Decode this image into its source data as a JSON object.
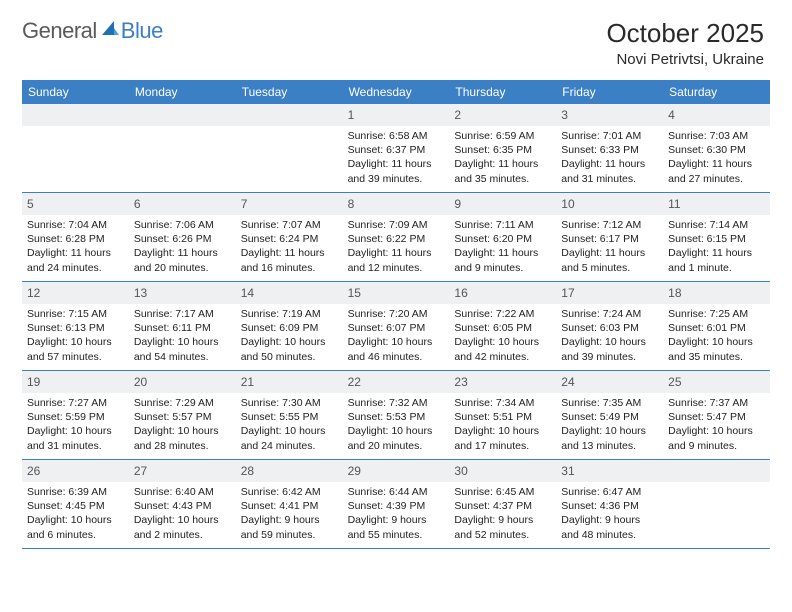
{
  "logo": {
    "text_general": "General",
    "text_blue": "Blue",
    "accent_color": "#1f6fb2"
  },
  "title": "October 2025",
  "location": "Novi Petrivtsi, Ukraine",
  "colors": {
    "header_bg": "#3b7fc4",
    "header_text": "#ffffff",
    "daynum_bg": "#eef0f1",
    "rule": "#3b7fc4",
    "body_text": "#222222"
  },
  "day_names": [
    "Sunday",
    "Monday",
    "Tuesday",
    "Wednesday",
    "Thursday",
    "Friday",
    "Saturday"
  ],
  "weeks": [
    [
      {
        "n": "",
        "empty": true
      },
      {
        "n": "",
        "empty": true
      },
      {
        "n": "",
        "empty": true
      },
      {
        "n": "1",
        "sr": "Sunrise: 6:58 AM",
        "ss": "Sunset: 6:37 PM",
        "d1": "Daylight: 11 hours",
        "d2": "and 39 minutes."
      },
      {
        "n": "2",
        "sr": "Sunrise: 6:59 AM",
        "ss": "Sunset: 6:35 PM",
        "d1": "Daylight: 11 hours",
        "d2": "and 35 minutes."
      },
      {
        "n": "3",
        "sr": "Sunrise: 7:01 AM",
        "ss": "Sunset: 6:33 PM",
        "d1": "Daylight: 11 hours",
        "d2": "and 31 minutes."
      },
      {
        "n": "4",
        "sr": "Sunrise: 7:03 AM",
        "ss": "Sunset: 6:30 PM",
        "d1": "Daylight: 11 hours",
        "d2": "and 27 minutes."
      }
    ],
    [
      {
        "n": "5",
        "sr": "Sunrise: 7:04 AM",
        "ss": "Sunset: 6:28 PM",
        "d1": "Daylight: 11 hours",
        "d2": "and 24 minutes."
      },
      {
        "n": "6",
        "sr": "Sunrise: 7:06 AM",
        "ss": "Sunset: 6:26 PM",
        "d1": "Daylight: 11 hours",
        "d2": "and 20 minutes."
      },
      {
        "n": "7",
        "sr": "Sunrise: 7:07 AM",
        "ss": "Sunset: 6:24 PM",
        "d1": "Daylight: 11 hours",
        "d2": "and 16 minutes."
      },
      {
        "n": "8",
        "sr": "Sunrise: 7:09 AM",
        "ss": "Sunset: 6:22 PM",
        "d1": "Daylight: 11 hours",
        "d2": "and 12 minutes."
      },
      {
        "n": "9",
        "sr": "Sunrise: 7:11 AM",
        "ss": "Sunset: 6:20 PM",
        "d1": "Daylight: 11 hours",
        "d2": "and 9 minutes."
      },
      {
        "n": "10",
        "sr": "Sunrise: 7:12 AM",
        "ss": "Sunset: 6:17 PM",
        "d1": "Daylight: 11 hours",
        "d2": "and 5 minutes."
      },
      {
        "n": "11",
        "sr": "Sunrise: 7:14 AM",
        "ss": "Sunset: 6:15 PM",
        "d1": "Daylight: 11 hours",
        "d2": "and 1 minute."
      }
    ],
    [
      {
        "n": "12",
        "sr": "Sunrise: 7:15 AM",
        "ss": "Sunset: 6:13 PM",
        "d1": "Daylight: 10 hours",
        "d2": "and 57 minutes."
      },
      {
        "n": "13",
        "sr": "Sunrise: 7:17 AM",
        "ss": "Sunset: 6:11 PM",
        "d1": "Daylight: 10 hours",
        "d2": "and 54 minutes."
      },
      {
        "n": "14",
        "sr": "Sunrise: 7:19 AM",
        "ss": "Sunset: 6:09 PM",
        "d1": "Daylight: 10 hours",
        "d2": "and 50 minutes."
      },
      {
        "n": "15",
        "sr": "Sunrise: 7:20 AM",
        "ss": "Sunset: 6:07 PM",
        "d1": "Daylight: 10 hours",
        "d2": "and 46 minutes."
      },
      {
        "n": "16",
        "sr": "Sunrise: 7:22 AM",
        "ss": "Sunset: 6:05 PM",
        "d1": "Daylight: 10 hours",
        "d2": "and 42 minutes."
      },
      {
        "n": "17",
        "sr": "Sunrise: 7:24 AM",
        "ss": "Sunset: 6:03 PM",
        "d1": "Daylight: 10 hours",
        "d2": "and 39 minutes."
      },
      {
        "n": "18",
        "sr": "Sunrise: 7:25 AM",
        "ss": "Sunset: 6:01 PM",
        "d1": "Daylight: 10 hours",
        "d2": "and 35 minutes."
      }
    ],
    [
      {
        "n": "19",
        "sr": "Sunrise: 7:27 AM",
        "ss": "Sunset: 5:59 PM",
        "d1": "Daylight: 10 hours",
        "d2": "and 31 minutes."
      },
      {
        "n": "20",
        "sr": "Sunrise: 7:29 AM",
        "ss": "Sunset: 5:57 PM",
        "d1": "Daylight: 10 hours",
        "d2": "and 28 minutes."
      },
      {
        "n": "21",
        "sr": "Sunrise: 7:30 AM",
        "ss": "Sunset: 5:55 PM",
        "d1": "Daylight: 10 hours",
        "d2": "and 24 minutes."
      },
      {
        "n": "22",
        "sr": "Sunrise: 7:32 AM",
        "ss": "Sunset: 5:53 PM",
        "d1": "Daylight: 10 hours",
        "d2": "and 20 minutes."
      },
      {
        "n": "23",
        "sr": "Sunrise: 7:34 AM",
        "ss": "Sunset: 5:51 PM",
        "d1": "Daylight: 10 hours",
        "d2": "and 17 minutes."
      },
      {
        "n": "24",
        "sr": "Sunrise: 7:35 AM",
        "ss": "Sunset: 5:49 PM",
        "d1": "Daylight: 10 hours",
        "d2": "and 13 minutes."
      },
      {
        "n": "25",
        "sr": "Sunrise: 7:37 AM",
        "ss": "Sunset: 5:47 PM",
        "d1": "Daylight: 10 hours",
        "d2": "and 9 minutes."
      }
    ],
    [
      {
        "n": "26",
        "sr": "Sunrise: 6:39 AM",
        "ss": "Sunset: 4:45 PM",
        "d1": "Daylight: 10 hours",
        "d2": "and 6 minutes."
      },
      {
        "n": "27",
        "sr": "Sunrise: 6:40 AM",
        "ss": "Sunset: 4:43 PM",
        "d1": "Daylight: 10 hours",
        "d2": "and 2 minutes."
      },
      {
        "n": "28",
        "sr": "Sunrise: 6:42 AM",
        "ss": "Sunset: 4:41 PM",
        "d1": "Daylight: 9 hours",
        "d2": "and 59 minutes."
      },
      {
        "n": "29",
        "sr": "Sunrise: 6:44 AM",
        "ss": "Sunset: 4:39 PM",
        "d1": "Daylight: 9 hours",
        "d2": "and 55 minutes."
      },
      {
        "n": "30",
        "sr": "Sunrise: 6:45 AM",
        "ss": "Sunset: 4:37 PM",
        "d1": "Daylight: 9 hours",
        "d2": "and 52 minutes."
      },
      {
        "n": "31",
        "sr": "Sunrise: 6:47 AM",
        "ss": "Sunset: 4:36 PM",
        "d1": "Daylight: 9 hours",
        "d2": "and 48 minutes."
      },
      {
        "n": "",
        "empty": true
      }
    ]
  ]
}
